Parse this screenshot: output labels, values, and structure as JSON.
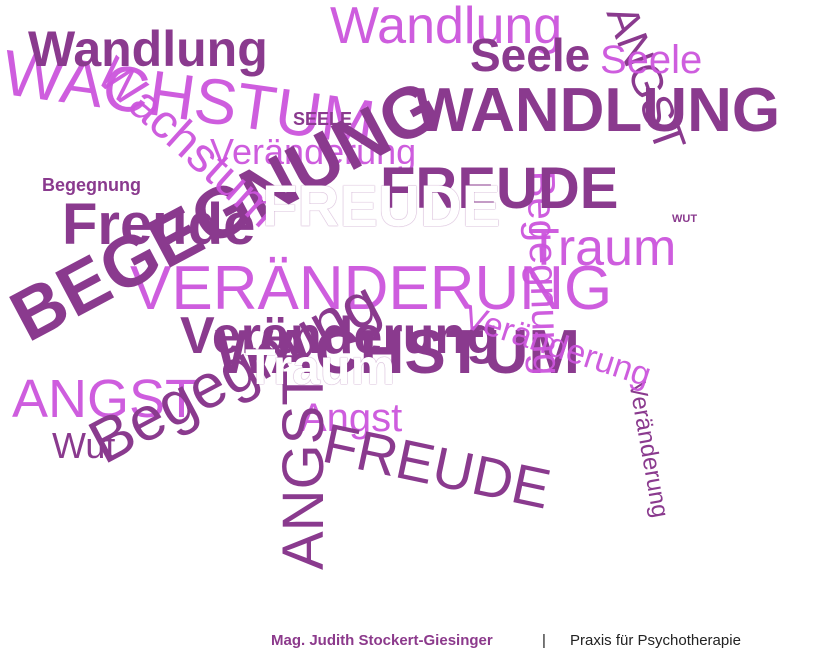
{
  "colors": {
    "dark": "#8a3a8e",
    "mid": "#a94fb8",
    "light": "#cc55dd",
    "white": "#ffffff"
  },
  "cloud": {
    "words": [
      {
        "text": "WACHSTUM",
        "tone": "light"
      },
      {
        "text": "Wandlung",
        "tone": "light"
      },
      {
        "text": "Wandlung",
        "tone": "dark"
      },
      {
        "text": "Seele",
        "tone": "dark"
      },
      {
        "text": "WANDLUNG",
        "tone": "dark"
      },
      {
        "text": "SEELE",
        "tone": "dark"
      },
      {
        "text": "Veränderung",
        "tone": "light"
      },
      {
        "text": "Begegnung",
        "tone": "dark"
      },
      {
        "text": "FREUDE",
        "tone": "white"
      },
      {
        "text": "Freude",
        "tone": "dark"
      },
      {
        "text": "WUT",
        "tone": "dark"
      },
      {
        "text": "Traum",
        "tone": "light"
      },
      {
        "text": "VERÄNDERUNG",
        "tone": "light"
      },
      {
        "text": "Veränderung",
        "tone": "dark"
      },
      {
        "text": "WACHSTUM",
        "tone": "dark"
      },
      {
        "text": "Traum",
        "tone": "white"
      },
      {
        "text": "ANGST",
        "tone": "light"
      },
      {
        "text": "Angst",
        "tone": "light"
      },
      {
        "text": "Wut",
        "tone": "dark"
      },
      {
        "text": "Begegnung",
        "tone": "dark"
      },
      {
        "text": "FREUDE",
        "tone": "dark"
      },
      {
        "text": "ANGST",
        "tone": "dark"
      },
      {
        "text": "Veränderung",
        "tone": "dark"
      },
      {
        "text": "BEGEGNUNG",
        "tone": "dark"
      },
      {
        "text": "Wachstum",
        "tone": "light"
      },
      {
        "text": "Begegnung",
        "tone": "light"
      },
      {
        "text": "ANGST",
        "tone": "dark"
      },
      {
        "text": "Veränderung",
        "tone": "light"
      },
      {
        "text": "FREUDE",
        "tone": "dark"
      },
      {
        "text": "Seele",
        "tone": "light"
      }
    ]
  },
  "footer": {
    "name": "Mag. Judith Stockert-Giesinger",
    "separator": "|",
    "tagline": "Praxis für Psychotherapie"
  }
}
